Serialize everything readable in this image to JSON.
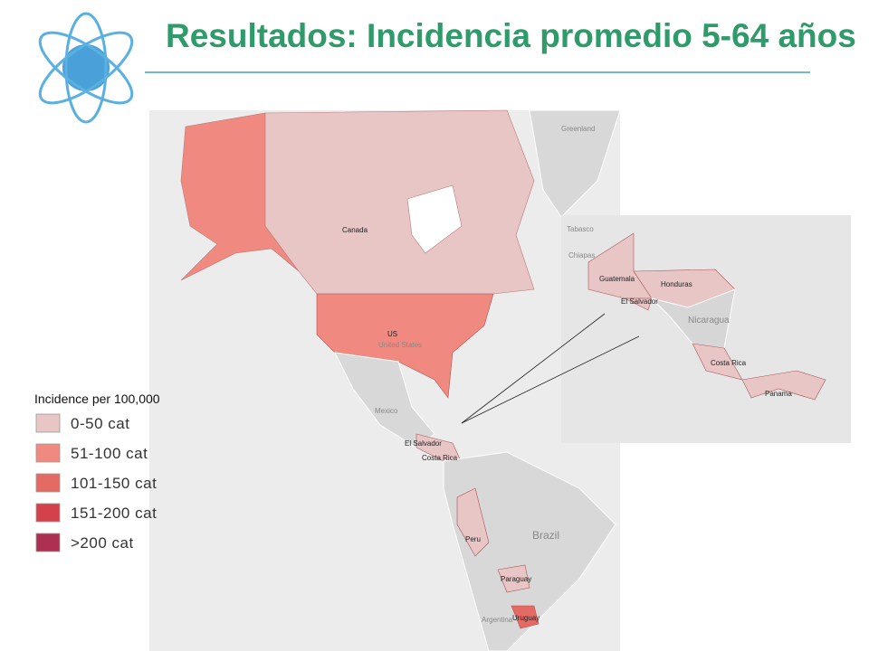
{
  "header": {
    "title": "Resultados: Incidencia promedio 5-64 años"
  },
  "legend": {
    "title": "Incidence per 100,000",
    "items": [
      {
        "label": "0-50 cat",
        "color": "#e9c6c6"
      },
      {
        "label": "51-100 cat",
        "color": "#f08a80"
      },
      {
        "label": "101-150 cat",
        "color": "#e46b64"
      },
      {
        "label": "151-200 cat",
        "color": "#d5414b"
      },
      {
        "label": ">200 cat",
        "color": "#ae3050"
      }
    ]
  },
  "map": {
    "labels": [
      "Greenland",
      "Canada",
      "US",
      "United States",
      "Mexico",
      "El Salvador",
      "Costa Rica",
      "Peru",
      "Brazil",
      "Paraguay",
      "Uruguay",
      "Argentina",
      "Tabasco",
      "Chiapas",
      "Guatemala",
      "Honduras",
      "El Salvador",
      "Nicaragua",
      "Costa Rica",
      "Panama"
    ]
  }
}
